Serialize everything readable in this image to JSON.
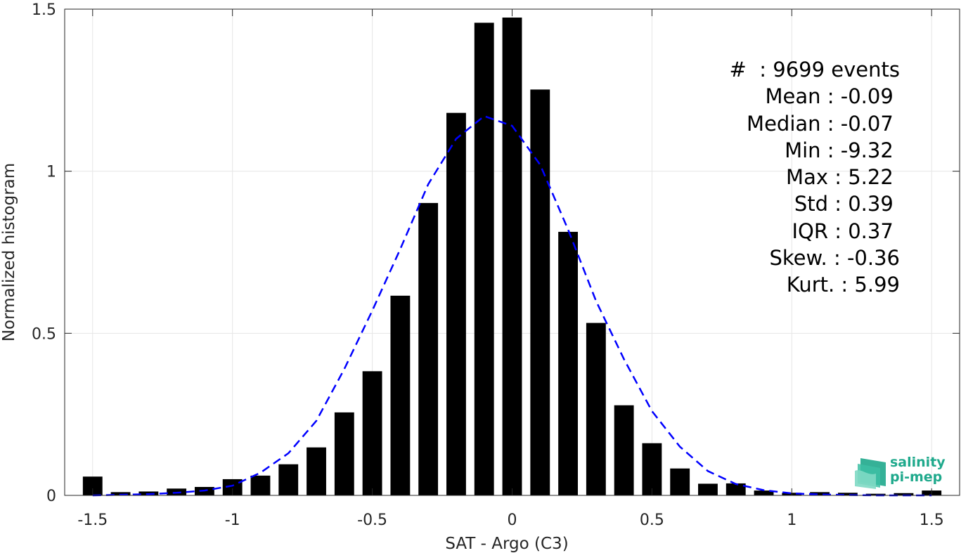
{
  "chart_data": {
    "type": "bar",
    "xlabel": "SAT - Argo (C3)",
    "ylabel": "Normalized histogram",
    "xlim": [
      -1.6,
      1.6
    ],
    "ylim": [
      0,
      1.5
    ],
    "xticks": [
      -1.5,
      -1,
      -0.5,
      0,
      0.5,
      1,
      1.5
    ],
    "xtick_labels": [
      "-1.5",
      "-1",
      "-0.5",
      "0",
      "0.5",
      "1",
      "1.5"
    ],
    "yticks": [
      0,
      0.5,
      1,
      1.5
    ],
    "ytick_labels": [
      "0",
      "0.5",
      "1",
      "1.5"
    ],
    "grid": true,
    "bar_color": "#000000",
    "bar_width": 0.07,
    "series": [
      {
        "type": "bar",
        "x": [
          -1.5,
          -1.4,
          -1.3,
          -1.2,
          -1.1,
          -1.0,
          -0.9,
          -0.8,
          -0.7,
          -0.6,
          -0.5,
          -0.4,
          -0.3,
          -0.2,
          -0.1,
          0.0,
          0.1,
          0.2,
          0.3,
          0.4,
          0.5,
          0.6,
          0.7,
          0.8,
          0.9,
          1.0,
          1.1,
          1.2,
          1.3,
          1.4,
          1.5
        ],
        "values": [
          0.058,
          0.01,
          0.012,
          0.021,
          0.026,
          0.05,
          0.061,
          0.096,
          0.148,
          0.256,
          0.383,
          0.616,
          0.902,
          1.18,
          1.458,
          1.474,
          1.252,
          0.813,
          0.532,
          0.278,
          0.161,
          0.083,
          0.036,
          0.037,
          0.015,
          0.008,
          0.01,
          0.008,
          0.005,
          0.007,
          0.015
        ]
      },
      {
        "type": "line",
        "style": "dashed",
        "color": "#0000ff",
        "x": [
          -1.5,
          -1.4,
          -1.3,
          -1.2,
          -1.1,
          -1.0,
          -0.9,
          -0.8,
          -0.7,
          -0.6,
          -0.5,
          -0.4,
          -0.3,
          -0.2,
          -0.1,
          0.0,
          0.1,
          0.2,
          0.3,
          0.4,
          0.5,
          0.6,
          0.7,
          0.8,
          0.9,
          1.0,
          1.1,
          1.2,
          1.3,
          1.4,
          1.5
        ],
        "values": [
          0.0,
          0.002,
          0.004,
          0.008,
          0.015,
          0.03,
          0.07,
          0.13,
          0.23,
          0.39,
          0.57,
          0.76,
          0.96,
          1.1,
          1.17,
          1.14,
          1.02,
          0.82,
          0.6,
          0.42,
          0.26,
          0.15,
          0.075,
          0.035,
          0.016,
          0.006,
          0.003,
          0.001,
          0.0,
          0.0,
          0.0
        ]
      }
    ]
  },
  "stats": [
    "#  : 9699 events",
    "Mean : -0.09 ",
    "Median : -0.07 ",
    "Min : -9.32 ",
    "Max : 5.22 ",
    "Std : 0.39 ",
    "IQR : 0.37 ",
    "Skew. : -0.36",
    "Kurt. : 5.99"
  ],
  "logo": {
    "line1": "salinity",
    "line2": "pi-mep",
    "color": "#1fa98c"
  }
}
